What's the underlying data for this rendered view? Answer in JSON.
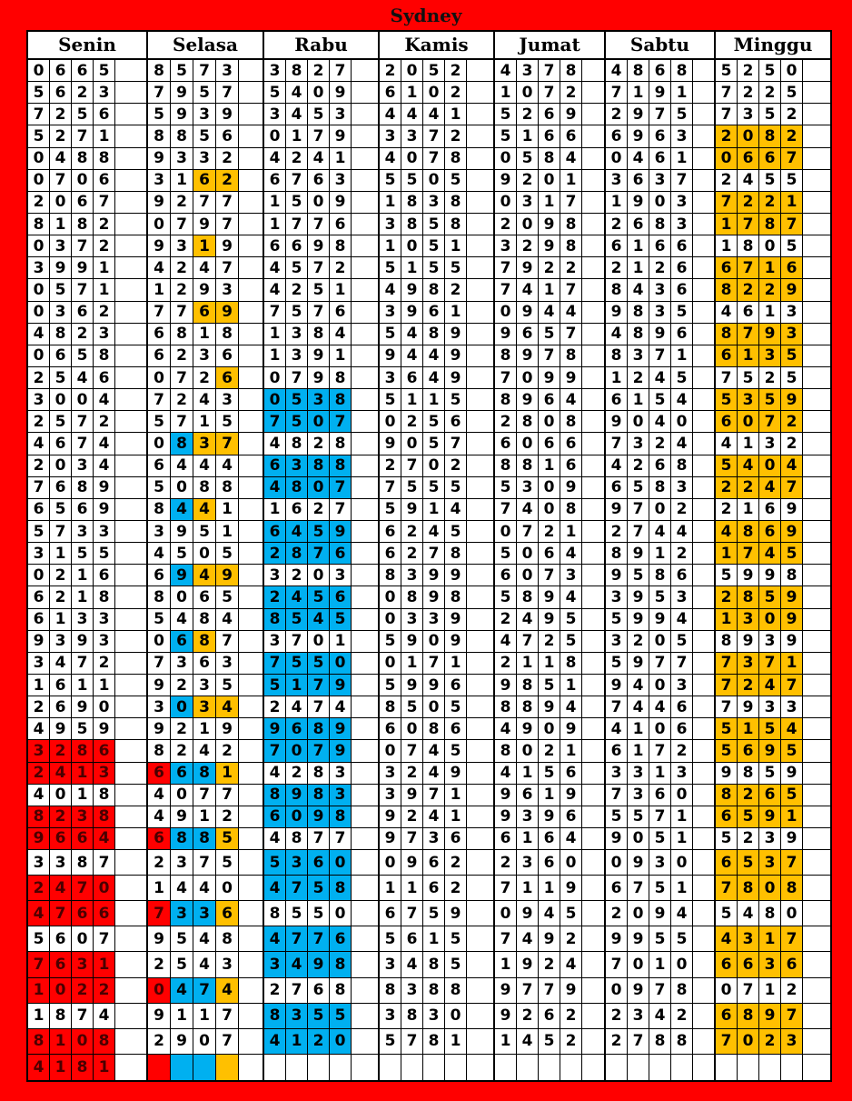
{
  "title": "Sydney",
  "colors": {
    "red": "#ff0000",
    "blue": "#00b0f0",
    "orange": "#ffc000"
  },
  "days": [
    {
      "name": "Senin",
      "rows": [
        "0665",
        "5623",
        "7256",
        "5271",
        "0488",
        "0706",
        "2067",
        "8182",
        "0372",
        "3991",
        "0571",
        "0362",
        "4823",
        "0658",
        "2546",
        "3004",
        "2572",
        "4674",
        "2034",
        "7689",
        "6569",
        "5733",
        "3155",
        "0216",
        "6218",
        "6133",
        "9393",
        "3472",
        "1611",
        "2690",
        "4959",
        "3286",
        "2413",
        "4018",
        "8238",
        "9664",
        "3387",
        "2470",
        "4766",
        "5607",
        "7631",
        "1022",
        "1874",
        "8108",
        "4181"
      ],
      "highlights": {
        "31": "rrrr",
        "32": "rrrr",
        "34": "rrrr",
        "35": "rrrr",
        "37": "rrrr",
        "38": "rrrr",
        "40": "rrrr",
        "41": "rrrr",
        "43": "rrrr",
        "44": "rrrr"
      }
    },
    {
      "name": "Selasa",
      "rows": [
        "8573",
        "7957",
        "5939",
        "8856",
        "9332",
        "3162",
        "9277",
        "0797",
        "9319",
        "4247",
        "1293",
        "7769",
        "6818",
        "6236",
        "0726",
        "7243",
        "5715",
        "0837",
        "6444",
        "5088",
        "8441",
        "3951",
        "4505",
        "6949",
        "8065",
        "5484",
        "0687",
        "7363",
        "9235",
        "3034",
        "9219",
        "8242",
        "6681",
        "4077",
        "4912",
        "6885",
        "2375",
        "1440",
        "7336",
        "9548",
        "2543",
        "0474",
        "9117",
        "2907",
        ""
      ],
      "highlights": {
        "5": "..oo",
        "8": "..o.",
        "11": "..oo",
        "14": "...o",
        "17": ".boo",
        "20": ".bo.",
        "23": ".boo",
        "26": ".bo.",
        "29": ".boo",
        "32": "rbbo",
        "35": "rbbo",
        "38": "rbbo",
        "41": "rbbo",
        "44": "rbbo"
      }
    },
    {
      "name": "Rabu",
      "rows": [
        "3827",
        "5409",
        "3453",
        "0179",
        "4241",
        "6763",
        "1509",
        "1776",
        "6698",
        "4572",
        "4251",
        "7576",
        "1384",
        "1391",
        "0798",
        "0538",
        "7507",
        "4828",
        "6388",
        "4807",
        "1627",
        "6459",
        "2876",
        "3203",
        "2456",
        "8545",
        "3701",
        "7550",
        "5179",
        "2474",
        "9689",
        "7079",
        "4283",
        "8983",
        "6098",
        "4877",
        "5360",
        "4758",
        "8550",
        "4776",
        "3498",
        "2768",
        "8355",
        "4120",
        ""
      ],
      "highlights": {
        "15": "bbbb",
        "16": "bbbb",
        "18": "bbbb",
        "19": "bbbb",
        "21": "bbbb",
        "22": "bbbb",
        "24": "bbbb",
        "25": "bbbb",
        "27": "bbbb",
        "28": "bbbb",
        "30": "bbbb",
        "31": "bbbb",
        "33": "bbbb",
        "34": "bbbb",
        "36": "bbbb",
        "37": "bbbb",
        "39": "bbbb",
        "40": "bbbb",
        "42": "bbbb",
        "43": "bbbb"
      }
    },
    {
      "name": "Kamis",
      "rows": [
        "2052",
        "6102",
        "4441",
        "3372",
        "4078",
        "5505",
        "1838",
        "3858",
        "1051",
        "5155",
        "4982",
        "3961",
        "5489",
        "9449",
        "3649",
        "5115",
        "0256",
        "9057",
        "2702",
        "7555",
        "5914",
        "6245",
        "6278",
        "8399",
        "0898",
        "0339",
        "5909",
        "0171",
        "5996",
        "8505",
        "6086",
        "0745",
        "3249",
        "3971",
        "9241",
        "9736",
        "0962",
        "1162",
        "6759",
        "5615",
        "3485",
        "8388",
        "3830",
        "5781",
        ""
      ],
      "highlights": {}
    },
    {
      "name": "Jumat",
      "rows": [
        "4378",
        "1072",
        "5269",
        "5166",
        "0584",
        "9201",
        "0317",
        "2098",
        "3298",
        "7922",
        "7417",
        "0944",
        "9657",
        "8978",
        "7099",
        "8964",
        "2808",
        "6066",
        "8816",
        "5309",
        "7408",
        "0721",
        "5064",
        "6073",
        "5894",
        "2495",
        "4725",
        "2118",
        "9851",
        "8894",
        "4909",
        "8021",
        "4156",
        "9619",
        "9396",
        "6164",
        "2360",
        "7119",
        "0945",
        "7492",
        "1924",
        "9779",
        "9262",
        "1452",
        ""
      ],
      "highlights": {}
    },
    {
      "name": "Sabtu",
      "rows": [
        "4868",
        "7191",
        "2975",
        "6963",
        "0461",
        "3637",
        "1903",
        "2683",
        "6166",
        "2126",
        "8436",
        "9835",
        "4896",
        "8371",
        "1245",
        "6154",
        "9040",
        "7324",
        "4268",
        "6583",
        "9702",
        "2744",
        "8912",
        "9586",
        "3953",
        "5994",
        "3205",
        "5977",
        "9403",
        "7446",
        "4106",
        "6172",
        "3313",
        "7360",
        "5571",
        "9051",
        "0930",
        "6751",
        "2094",
        "9955",
        "7010",
        "0978",
        "2342",
        "2788",
        ""
      ],
      "highlights": {}
    },
    {
      "name": "Minggu",
      "rows": [
        "5250",
        "7225",
        "7352",
        "2082",
        "0667",
        "2455",
        "7221",
        "1787",
        "1805",
        "6716",
        "8229",
        "4613",
        "8793",
        "6135",
        "7525",
        "5359",
        "6072",
        "4132",
        "5404",
        "2247",
        "2169",
        "4869",
        "1745",
        "5998",
        "2859",
        "1309",
        "8939",
        "7371",
        "7247",
        "7933",
        "5154",
        "5695",
        "9859",
        "8265",
        "6591",
        "5239",
        "6537",
        "7808",
        "5480",
        "4317",
        "6636",
        "0712",
        "6897",
        "7023",
        ""
      ],
      "highlights": {
        "3": "oooo",
        "4": "oooo",
        "6": "oooo",
        "7": "oooo",
        "9": "oooo",
        "10": "oooo",
        "12": "oooo",
        "13": "oooo",
        "15": "oooo",
        "16": "oooo",
        "18": "oooo",
        "19": "oooo",
        "21": "oooo",
        "22": "oooo",
        "24": "oooo",
        "25": "oooo",
        "27": "oooo",
        "28": "oooo",
        "30": "oooo",
        "31": "oooo",
        "33": "oooo",
        "34": "oooo",
        "36": "oooo",
        "37": "oooo",
        "39": "oooo",
        "40": "oooo",
        "42": "oooo",
        "43": "oooo"
      }
    }
  ]
}
